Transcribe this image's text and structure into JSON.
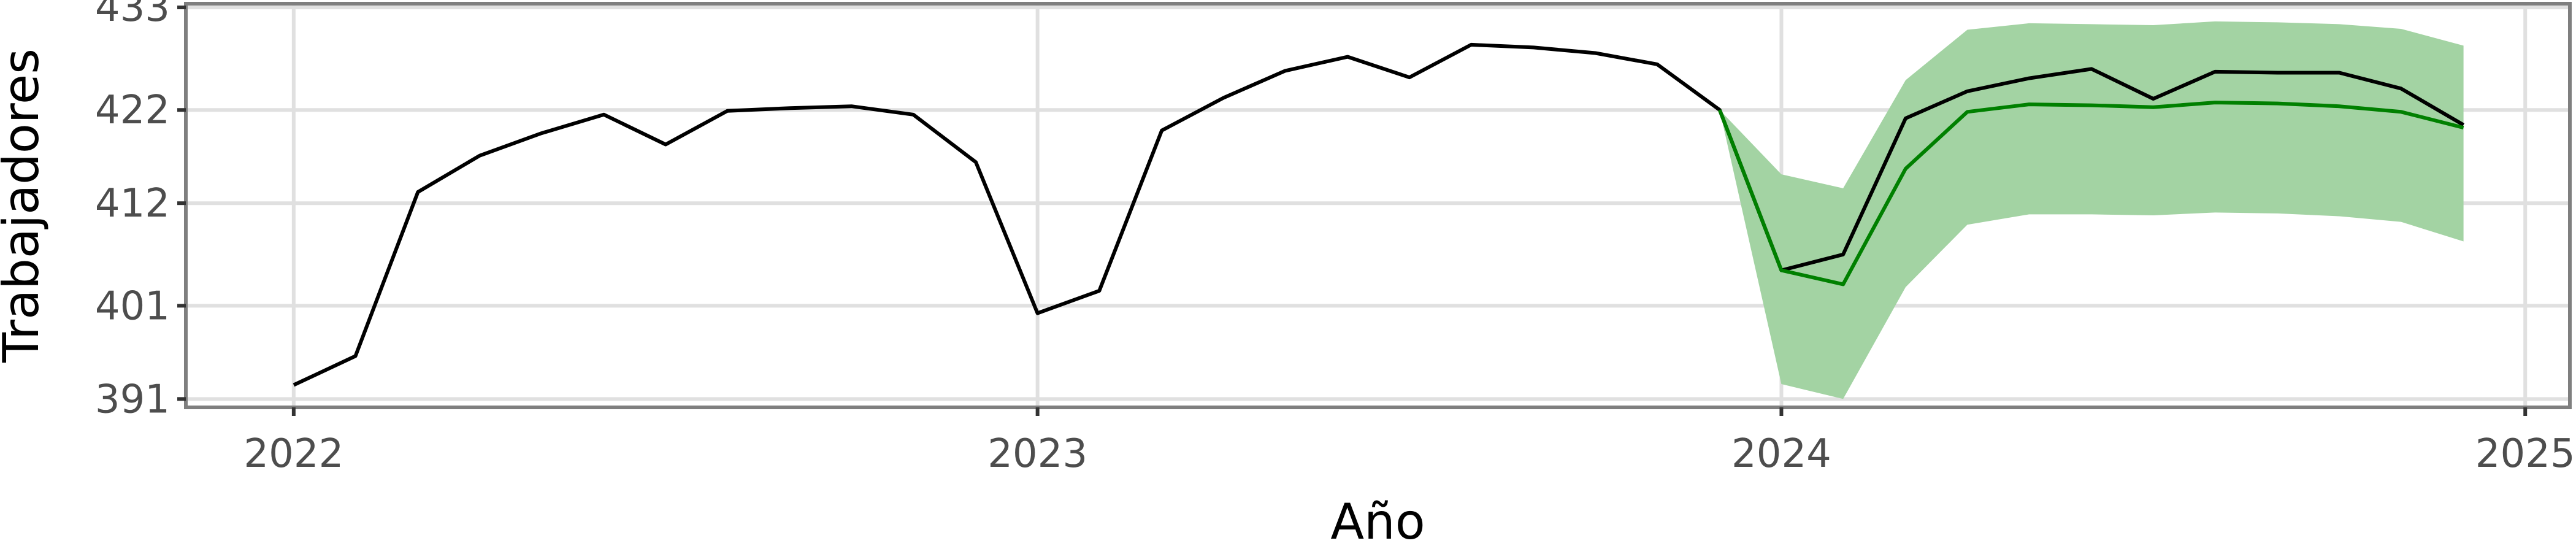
{
  "chart_data": {
    "type": "line",
    "xlabel": "Año",
    "ylabel": "Trabajadores",
    "xlim": [
      2021.855,
      2025.06
    ],
    "ylim": [
      390.1,
      433.4
    ],
    "x_ticks": [
      2022,
      2023,
      2024,
      2025
    ],
    "y_ticks": [
      391,
      401,
      412,
      422,
      433
    ],
    "grid": true,
    "legend": "none",
    "colors": {
      "observed": "#000000",
      "forecast": "#008000",
      "interval": "#a3d3a3",
      "grid": "#e0e0e0",
      "panel_border": "#7f7f7f",
      "tick_label": "#4d4d4d"
    },
    "series": [
      {
        "role": "observed",
        "x": [
          2022.0,
          2022.083,
          2022.167,
          2022.25,
          2022.333,
          2022.417,
          2022.5,
          2022.583,
          2022.667,
          2022.75,
          2022.833,
          2022.917,
          2023.0,
          2023.083,
          2023.167,
          2023.25,
          2023.333,
          2023.417,
          2023.5,
          2023.583,
          2023.667,
          2023.75,
          2023.833,
          2023.917,
          2024.0,
          2024.083,
          2024.167,
          2024.25,
          2024.333,
          2024.417,
          2024.5,
          2024.583,
          2024.667,
          2024.75,
          2024.833,
          2024.917
        ],
        "y": [
          392.5,
          395.6,
          413.2,
          417.1,
          419.5,
          421.5,
          418.3,
          421.9,
          422.2,
          422.4,
          421.5,
          416.4,
          400.2,
          402.6,
          419.8,
          423.3,
          426.2,
          427.7,
          425.5,
          429.0,
          428.7,
          428.1,
          426.9,
          422.0,
          404.8,
          406.5,
          421.1,
          424.0,
          425.4,
          426.4,
          423.2,
          426.1,
          426.0,
          426.0,
          424.3,
          420.4
        ]
      },
      {
        "role": "forecast",
        "x": [
          2023.917,
          2024.0,
          2024.083,
          2024.167,
          2024.25,
          2024.333,
          2024.417,
          2024.5,
          2024.583,
          2024.667,
          2024.75,
          2024.833,
          2024.917
        ],
        "y": [
          422.0,
          404.8,
          403.3,
          415.7,
          421.8,
          422.6,
          422.5,
          422.3,
          422.8,
          422.7,
          422.4,
          421.8,
          420.1
        ],
        "lower": [
          422.0,
          392.6,
          391.0,
          403.0,
          409.7,
          410.8,
          410.8,
          410.7,
          411.0,
          410.9,
          410.6,
          410.0,
          407.9
        ],
        "upper": [
          422.0,
          415.1,
          413.6,
          425.2,
          430.6,
          431.3,
          431.2,
          431.1,
          431.5,
          431.4,
          431.2,
          430.7,
          428.9
        ]
      }
    ]
  }
}
